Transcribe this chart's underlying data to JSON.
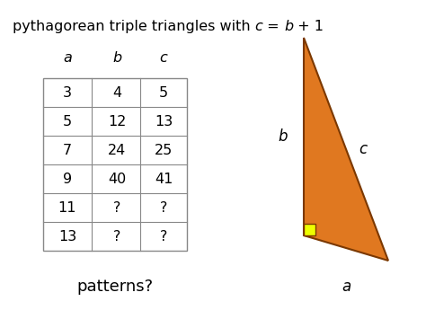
{
  "background_color": "#ffffff",
  "table_headers": [
    "a",
    "b",
    "c"
  ],
  "table_data": [
    [
      "3",
      "4",
      "5"
    ],
    [
      "5",
      "12",
      "13"
    ],
    [
      "7",
      "24",
      "25"
    ],
    [
      "9",
      "40",
      "41"
    ],
    [
      "11",
      "?",
      "?"
    ],
    [
      "13",
      "?",
      "?"
    ]
  ],
  "footer_text": "patterns?",
  "triangle_color": "#E07820",
  "triangle_edge_color": "#7B3800",
  "right_angle_color": "#EEFF00",
  "label_a": "a",
  "label_b": "b",
  "label_c": "c"
}
